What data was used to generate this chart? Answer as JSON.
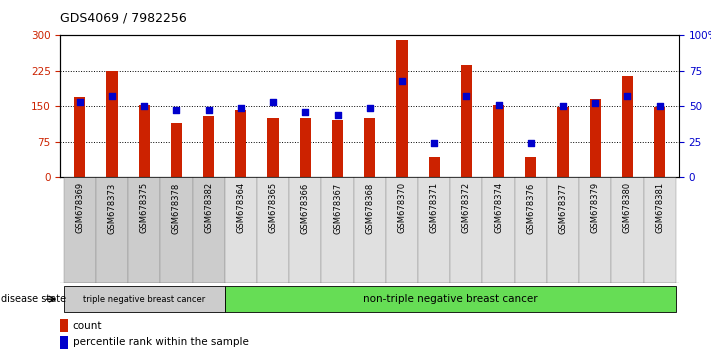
{
  "title": "GDS4069 / 7982256",
  "samples": [
    "GSM678369",
    "GSM678373",
    "GSM678375",
    "GSM678378",
    "GSM678382",
    "GSM678364",
    "GSM678365",
    "GSM678366",
    "GSM678367",
    "GSM678368",
    "GSM678370",
    "GSM678371",
    "GSM678372",
    "GSM678374",
    "GSM678376",
    "GSM678377",
    "GSM678379",
    "GSM678380",
    "GSM678381"
  ],
  "counts": [
    170,
    225,
    152,
    115,
    130,
    143,
    125,
    125,
    120,
    125,
    290,
    42,
    238,
    152,
    42,
    148,
    165,
    215,
    148
  ],
  "percentiles": [
    53,
    57,
    50,
    47,
    47,
    49,
    53,
    46,
    44,
    49,
    68,
    24,
    57,
    51,
    24,
    50,
    52,
    57,
    50
  ],
  "triple_negative_count": 5,
  "group1_label": "triple negative breast cancer",
  "group2_label": "non-triple negative breast cancer",
  "disease_state_label": "disease state",
  "ylim_left": [
    0,
    300
  ],
  "ylim_right": [
    0,
    100
  ],
  "yticks_left": [
    0,
    75,
    150,
    225,
    300
  ],
  "yticks_right": [
    0,
    25,
    50,
    75,
    100
  ],
  "bar_color": "#cc2200",
  "dot_color": "#0000cc",
  "bg_color": "#ffffff",
  "group1_bg": "#cccccc",
  "group2_bg": "#66dd55",
  "tick_label_color_left": "#cc2200",
  "tick_label_color_right": "#0000cc",
  "legend_count_label": "count",
  "legend_pct_label": "percentile rank within the sample",
  "bar_width": 0.35
}
